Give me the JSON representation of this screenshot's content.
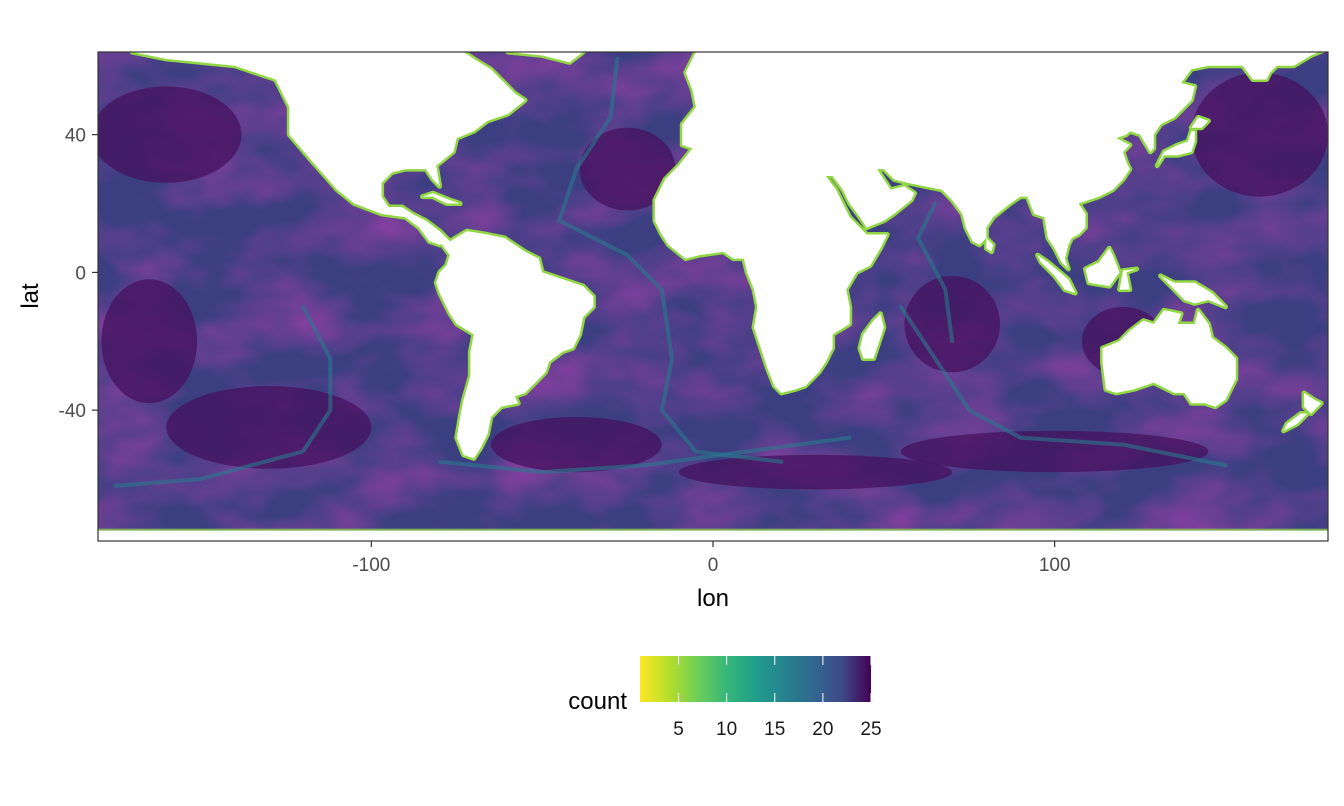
{
  "chart_data": {
    "type": "heatmap",
    "title": "",
    "xlabel": "lon",
    "ylabel": "lat",
    "xlim": [
      -180,
      180
    ],
    "ylim": [
      -78,
      64
    ],
    "x_ticks": [
      -100,
      0,
      100
    ],
    "x_tick_labels": [
      "-100",
      "0",
      "100"
    ],
    "y_ticks": [
      -40,
      0,
      40
    ],
    "y_tick_labels": [
      "-40",
      "0",
      "40"
    ],
    "grid": true,
    "colorscale": "viridis (reversed)",
    "colors": {
      "low": "#fde725",
      "mid_low": "#7ad151",
      "mid": "#22a884",
      "mid_high": "#2a788e",
      "high_mid": "#414487",
      "high": "#440154",
      "ocean_base": "#3b3f82",
      "ocean_deep": "#46125e",
      "coast": "#90d743"
    },
    "legend": {
      "title": "count",
      "placement": "bottom",
      "range": [
        1,
        25
      ],
      "ticks": [
        5,
        10,
        15,
        20,
        25
      ],
      "tick_labels": [
        "5",
        "10",
        "15",
        "20",
        "25"
      ]
    },
    "land_masses": [
      {
        "name": "North America",
        "polygon": [
          [
            -170,
            64
          ],
          [
            -160,
            62
          ],
          [
            -140,
            60
          ],
          [
            -128,
            56
          ],
          [
            -124,
            48
          ],
          [
            -124,
            40
          ],
          [
            -118,
            33
          ],
          [
            -110,
            24
          ],
          [
            -105,
            20
          ],
          [
            -97,
            17
          ],
          [
            -90,
            16
          ],
          [
            -86,
            13
          ],
          [
            -83,
            9
          ],
          [
            -80,
            8
          ],
          [
            -77,
            9
          ],
          [
            -80,
            12
          ],
          [
            -84,
            15
          ],
          [
            -88,
            17
          ],
          [
            -91,
            19
          ],
          [
            -95,
            19
          ],
          [
            -97,
            22
          ],
          [
            -97,
            26
          ],
          [
            -94,
            29
          ],
          [
            -90,
            30
          ],
          [
            -84,
            30
          ],
          [
            -82,
            27
          ],
          [
            -80,
            25
          ],
          [
            -81,
            31
          ],
          [
            -76,
            35
          ],
          [
            -75,
            39
          ],
          [
            -70,
            41
          ],
          [
            -66,
            44
          ],
          [
            -60,
            46
          ],
          [
            -55,
            50
          ],
          [
            -58,
            52
          ],
          [
            -65,
            59
          ],
          [
            -70,
            62
          ],
          [
            -73,
            64
          ]
        ]
      },
      {
        "name": "Greenland",
        "polygon": [
          [
            -60,
            64
          ],
          [
            -50,
            63
          ],
          [
            -42,
            61
          ],
          [
            -38,
            64
          ]
        ]
      },
      {
        "name": "South America",
        "polygon": [
          [
            -80,
            9
          ],
          [
            -77,
            9
          ],
          [
            -72,
            12
          ],
          [
            -66,
            11
          ],
          [
            -61,
            10
          ],
          [
            -55,
            6
          ],
          [
            -51,
            4
          ],
          [
            -50,
            0
          ],
          [
            -44,
            -2
          ],
          [
            -38,
            -4
          ],
          [
            -35,
            -7
          ],
          [
            -35,
            -10
          ],
          [
            -38,
            -13
          ],
          [
            -39,
            -18
          ],
          [
            -41,
            -22
          ],
          [
            -44,
            -23
          ],
          [
            -48,
            -26
          ],
          [
            -49,
            -29
          ],
          [
            -52,
            -32
          ],
          [
            -55,
            -35
          ],
          [
            -58,
            -36
          ],
          [
            -57,
            -38
          ],
          [
            -62,
            -39
          ],
          [
            -65,
            -42
          ],
          [
            -66,
            -47
          ],
          [
            -68,
            -51
          ],
          [
            -70,
            -54
          ],
          [
            -73,
            -53
          ],
          [
            -75,
            -48
          ],
          [
            -74,
            -42
          ],
          [
            -73,
            -37
          ],
          [
            -71,
            -30
          ],
          [
            -71,
            -23
          ],
          [
            -70,
            -18
          ],
          [
            -75,
            -15
          ],
          [
            -77,
            -12
          ],
          [
            -80,
            -6
          ],
          [
            -81,
            -3
          ],
          [
            -80,
            0
          ],
          [
            -78,
            2
          ],
          [
            -77,
            5
          ]
        ]
      },
      {
        "name": "Europe-Africa-Asia",
        "polygon": [
          [
            -5,
            64
          ],
          [
            -8,
            58
          ],
          [
            -6,
            53
          ],
          [
            -5,
            48
          ],
          [
            -9,
            43
          ],
          [
            -9,
            37
          ],
          [
            -6,
            36
          ],
          [
            -10,
            31
          ],
          [
            -14,
            27
          ],
          [
            -17,
            21
          ],
          [
            -17,
            15
          ],
          [
            -15,
            11
          ],
          [
            -13,
            8
          ],
          [
            -8,
            4
          ],
          [
            -4,
            5
          ],
          [
            3,
            6
          ],
          [
            6,
            4
          ],
          [
            9,
            4
          ],
          [
            10,
            0
          ],
          [
            12,
            -5
          ],
          [
            13,
            -10
          ],
          [
            12,
            -16
          ],
          [
            14,
            -22
          ],
          [
            16,
            -28
          ],
          [
            18,
            -33
          ],
          [
            20,
            -35
          ],
          [
            24,
            -34
          ],
          [
            27,
            -33
          ],
          [
            31,
            -29
          ],
          [
            33,
            -26
          ],
          [
            35,
            -22
          ],
          [
            35,
            -18
          ],
          [
            40,
            -15
          ],
          [
            40,
            -10
          ],
          [
            39,
            -5
          ],
          [
            42,
            0
          ],
          [
            46,
            2
          ],
          [
            49,
            7
          ],
          [
            51,
            11
          ],
          [
            45,
            11
          ],
          [
            43,
            13
          ],
          [
            40,
            16
          ],
          [
            38,
            20
          ],
          [
            36,
            24
          ],
          [
            33,
            28
          ],
          [
            35,
            28
          ],
          [
            38,
            24
          ],
          [
            40,
            20
          ],
          [
            43,
            16
          ],
          [
            45,
            13
          ],
          [
            50,
            15
          ],
          [
            53,
            17
          ],
          [
            58,
            21
          ],
          [
            59,
            23
          ],
          [
            56,
            25
          ],
          [
            52,
            24
          ],
          [
            50,
            27
          ],
          [
            48,
            30
          ],
          [
            50,
            30
          ],
          [
            53,
            27
          ],
          [
            57,
            26
          ],
          [
            62,
            25
          ],
          [
            67,
            24
          ],
          [
            70,
            21
          ],
          [
            73,
            17
          ],
          [
            74,
            13
          ],
          [
            76,
            9
          ],
          [
            78,
            8
          ],
          [
            80,
            10
          ],
          [
            80,
            13
          ],
          [
            82,
            16
          ],
          [
            87,
            20
          ],
          [
            90,
            22
          ],
          [
            92,
            22
          ],
          [
            94,
            17
          ],
          [
            97,
            16
          ],
          [
            98,
            10
          ],
          [
            100,
            7
          ],
          [
            102,
            3
          ],
          [
            104,
            1
          ],
          [
            103,
            4
          ],
          [
            104,
            8
          ],
          [
            105,
            10
          ],
          [
            107,
            11
          ],
          [
            109,
            13
          ],
          [
            109,
            17
          ],
          [
            107,
            20
          ],
          [
            110,
            21
          ],
          [
            113,
            22
          ],
          [
            117,
            24
          ],
          [
            120,
            27
          ],
          [
            122,
            30
          ],
          [
            121,
            32
          ],
          [
            120,
            35
          ],
          [
            122,
            37
          ],
          [
            120,
            38
          ],
          [
            118,
            39
          ],
          [
            121,
            40
          ],
          [
            122,
            41
          ],
          [
            125,
            40
          ],
          [
            128,
            35
          ],
          [
            129,
            36
          ],
          [
            129,
            40
          ],
          [
            131,
            43
          ],
          [
            135,
            45
          ],
          [
            140,
            50
          ],
          [
            141,
            54
          ],
          [
            137,
            55
          ],
          [
            140,
            59
          ],
          [
            145,
            60
          ],
          [
            150,
            60
          ],
          [
            155,
            60
          ],
          [
            158,
            56
          ],
          [
            162,
            56
          ],
          [
            163,
            58
          ],
          [
            165,
            60
          ],
          [
            170,
            60
          ],
          [
            175,
            63
          ],
          [
            180,
            65
          ]
        ]
      },
      {
        "name": "Madagascar",
        "polygon": [
          [
            44,
            -25
          ],
          [
            47,
            -25
          ],
          [
            50,
            -16
          ],
          [
            49,
            -12
          ],
          [
            47,
            -14
          ],
          [
            44,
            -18
          ],
          [
            43,
            -22
          ]
        ]
      },
      {
        "name": "Sri Lanka",
        "polygon": [
          [
            80,
            7
          ],
          [
            81.5,
            6
          ],
          [
            82,
            8
          ],
          [
            80,
            10
          ]
        ]
      },
      {
        "name": "Borneo",
        "polygon": [
          [
            109,
            1
          ],
          [
            110,
            -3
          ],
          [
            116,
            -4
          ],
          [
            119,
            0
          ],
          [
            117,
            5
          ],
          [
            116,
            7
          ],
          [
            113,
            3
          ]
        ]
      },
      {
        "name": "Sumatra",
        "polygon": [
          [
            95,
            5
          ],
          [
            98,
            3
          ],
          [
            104,
            -2
          ],
          [
            106,
            -6
          ],
          [
            103,
            -5
          ],
          [
            100,
            -1
          ],
          [
            96,
            3
          ]
        ]
      },
      {
        "name": "New Guinea",
        "polygon": [
          [
            131,
            -1
          ],
          [
            135,
            -3
          ],
          [
            141,
            -3
          ],
          [
            146,
            -6
          ],
          [
            150,
            -10
          ],
          [
            145,
            -8
          ],
          [
            141,
            -9
          ],
          [
            138,
            -8
          ],
          [
            134,
            -4
          ]
        ]
      },
      {
        "name": "Australia",
        "polygon": [
          [
            114,
            -22
          ],
          [
            114,
            -26
          ],
          [
            115,
            -34
          ],
          [
            118,
            -35
          ],
          [
            123,
            -34
          ],
          [
            129,
            -32
          ],
          [
            135,
            -35
          ],
          [
            138,
            -35
          ],
          [
            140,
            -38
          ],
          [
            144,
            -38
          ],
          [
            147,
            -39
          ],
          [
            150,
            -37
          ],
          [
            153,
            -31
          ],
          [
            153,
            -25
          ],
          [
            150,
            -22
          ],
          [
            146,
            -19
          ],
          [
            145,
            -15
          ],
          [
            142,
            -11
          ],
          [
            141,
            -15
          ],
          [
            136,
            -15
          ],
          [
            137,
            -12
          ],
          [
            132,
            -11
          ],
          [
            129,
            -15
          ],
          [
            126,
            -14
          ],
          [
            122,
            -17
          ],
          [
            119,
            -20
          ]
        ]
      },
      {
        "name": "New Zealand North",
        "polygon": [
          [
            173,
            -35
          ],
          [
            176,
            -37
          ],
          [
            178,
            -38
          ],
          [
            175,
            -41
          ],
          [
            173,
            -39
          ]
        ]
      },
      {
        "name": "New Zealand South",
        "polygon": [
          [
            167,
            -46
          ],
          [
            171,
            -44
          ],
          [
            174,
            -41
          ],
          [
            172,
            -41
          ],
          [
            168,
            -44
          ]
        ]
      },
      {
        "name": "Japan",
        "polygon": [
          [
            130,
            31
          ],
          [
            132,
            34
          ],
          [
            136,
            34
          ],
          [
            140,
            35
          ],
          [
            141,
            38
          ],
          [
            141,
            41
          ],
          [
            140,
            41
          ],
          [
            139,
            38
          ],
          [
            136,
            37
          ],
          [
            132,
            35
          ]
        ]
      },
      {
        "name": "Cuba",
        "polygon": [
          [
            -85,
            22
          ],
          [
            -82,
            23
          ],
          [
            -77,
            21
          ],
          [
            -74,
            20
          ],
          [
            -78,
            20
          ],
          [
            -82,
            22
          ]
        ]
      },
      {
        "name": "Sulawesi",
        "polygon": [
          [
            119,
            -5
          ],
          [
            122,
            -5
          ],
          [
            121,
            0
          ],
          [
            124,
            1
          ],
          [
            120,
            0.5
          ]
        ]
      },
      {
        "name": "Hokkaido",
        "polygon": [
          [
            140,
            42
          ],
          [
            143,
            42
          ],
          [
            145,
            44
          ],
          [
            142,
            45
          ]
        ]
      }
    ]
  }
}
